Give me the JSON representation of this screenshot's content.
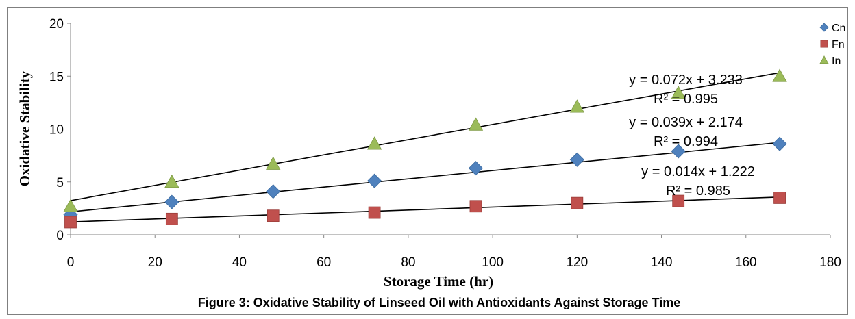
{
  "chart_data": {
    "type": "scatter",
    "xlabel": "Storage Time (hr)",
    "ylabel": "Oxidative Stability",
    "caption": "Figure 3: Oxidative Stability of Linseed Oil with Antioxidants Against Storage Time",
    "xlim": [
      0,
      180
    ],
    "ylim": [
      0,
      20
    ],
    "x_ticks": [
      0,
      20,
      40,
      60,
      80,
      100,
      120,
      140,
      160,
      180
    ],
    "y_ticks": [
      0,
      5,
      10,
      15,
      20
    ],
    "grid": false,
    "legend_position": "top-right",
    "x": [
      0,
      24,
      48,
      72,
      96,
      120,
      144,
      168
    ],
    "series": [
      {
        "name": "Cn",
        "marker": "diamond",
        "color": "#4f81bd",
        "values": [
          1.9,
          3.1,
          4.1,
          5.1,
          6.3,
          7.1,
          7.9,
          8.6
        ],
        "trendline": {
          "slope": 0.039,
          "intercept": 2.174,
          "equation": "y = 0.039x + 2.174",
          "r2": "R² = 0.994"
        }
      },
      {
        "name": "Fn",
        "marker": "square",
        "color": "#c0504d",
        "values": [
          1.2,
          1.5,
          1.8,
          2.1,
          2.7,
          3.0,
          3.2,
          3.5
        ],
        "trendline": {
          "slope": 0.014,
          "intercept": 1.222,
          "equation": "y = 0.014x + 1.222",
          "r2": "R² = 0.985"
        }
      },
      {
        "name": "In",
        "marker": "triangle",
        "color": "#9bbb59",
        "values": [
          2.7,
          5.0,
          6.7,
          8.6,
          10.4,
          12.1,
          13.4,
          15.0
        ],
        "trendline": {
          "slope": 0.072,
          "intercept": 3.233,
          "equation": "y = 0.072x + 3.233",
          "r2": "R² = 0.995"
        }
      }
    ]
  }
}
